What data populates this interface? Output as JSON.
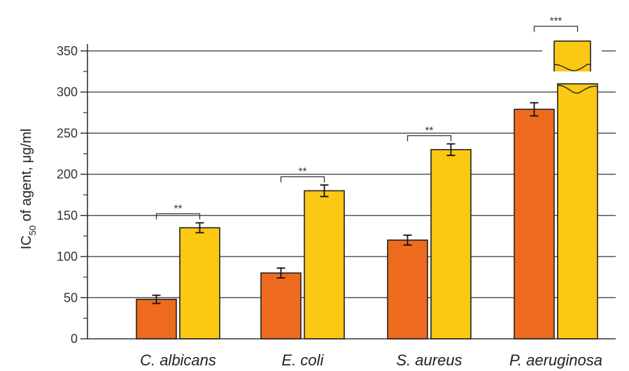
{
  "chart_data": {
    "type": "bar",
    "categories": [
      "C. albicans",
      "E. coli",
      "S. aureus",
      "P. aeruginosa"
    ],
    "series": [
      {
        "values": [
          48,
          80,
          120,
          279
        ],
        "errors": [
          5,
          6,
          6,
          8
        ],
        "color": "#ee6a1e"
      },
      {
        "values": [
          135,
          180,
          230,
          360
        ],
        "errors": [
          6,
          7,
          7,
          null
        ],
        "color": "#fbc814",
        "axis_break_in_last_bar": true
      }
    ],
    "significance": [
      "**",
      "**",
      "**",
      "***"
    ],
    "ylabel": {
      "main": "IC",
      "sub": "50",
      "rest": " of agent, μg/ml"
    },
    "ylim": [
      0,
      350
    ],
    "yticks": [
      0,
      50,
      100,
      150,
      200,
      250,
      300,
      350
    ],
    "grid": true,
    "title": "",
    "xlabel": ""
  }
}
